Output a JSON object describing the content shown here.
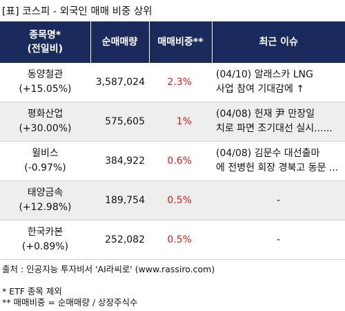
{
  "title": "[표] 코스피 - 외국인 매매 비중 상위",
  "headers": {
    "name_line1": "종목명*",
    "name_line2": "(전일비)",
    "volume": "순매매량",
    "ratio": "매매비중**",
    "issue": "최근 이슈"
  },
  "rows": [
    {
      "name": "동양철관",
      "change": "(+15.05%)",
      "volume": "3,587,024",
      "ratio": "2.3%",
      "issue_line1": "(04/10) 알래스카 LNG",
      "issue_line2": "사업 참여 기대감에 ↑"
    },
    {
      "name": "평화산업",
      "change": "(+30.00%)",
      "volume": "575,605",
      "ratio": "1%",
      "issue_line1": "(04/08) 헌재 尹 만장일",
      "issue_line2": "치로 파면 조기대선 실시......"
    },
    {
      "name": "윌비스",
      "change": "(-0.97%)",
      "volume": "384,922",
      "ratio": "0.6%",
      "issue_line1": "(04/08) 김문수 대선출마",
      "issue_line2": "에 전병헌 회장 경북고 동문 ..."
    },
    {
      "name": "태양금속",
      "change": "(+12.98%)",
      "volume": "189,754",
      "ratio": "0.5%",
      "issue_line1": "-",
      "issue_line2": ""
    },
    {
      "name": "한국카본",
      "change": "(+0.89%)",
      "volume": "252,082",
      "ratio": "0.5%",
      "issue_line1": "-",
      "issue_line2": ""
    }
  ],
  "footer": {
    "source": "출처 : 인공지능 투자비서 'AI라씨로' (www.rassiro.com)",
    "note1": "* ETF 종목 제외",
    "note2": "** 매매비중 = 순매매량 / 상장주식수"
  },
  "colors": {
    "header_bg": "#1a2a5c",
    "ratio_text": "#e01a1a",
    "alt_row_bg": "#eeeeee"
  }
}
